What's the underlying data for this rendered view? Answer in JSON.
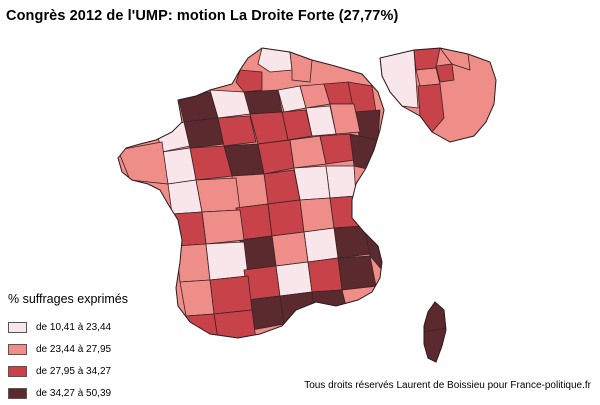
{
  "title": "Congrès 2012 de l'UMP: motion La Droite Forte (27,77%)",
  "legend": {
    "title": "% suffrages exprimés",
    "items": [
      {
        "label": "de 10,41 à 23,44",
        "color": "#f8e6ea"
      },
      {
        "label": "de 23,44 à 27,95",
        "color": "#ef8e88"
      },
      {
        "label": "de 27,95 à 34,27",
        "color": "#c84249"
      },
      {
        "label": "de 34,27 à 50,39",
        "color": "#5a2a2e"
      }
    ]
  },
  "credit": "Tous droits réservés Laurent de Boissieu pour France-politique.fr"
}
